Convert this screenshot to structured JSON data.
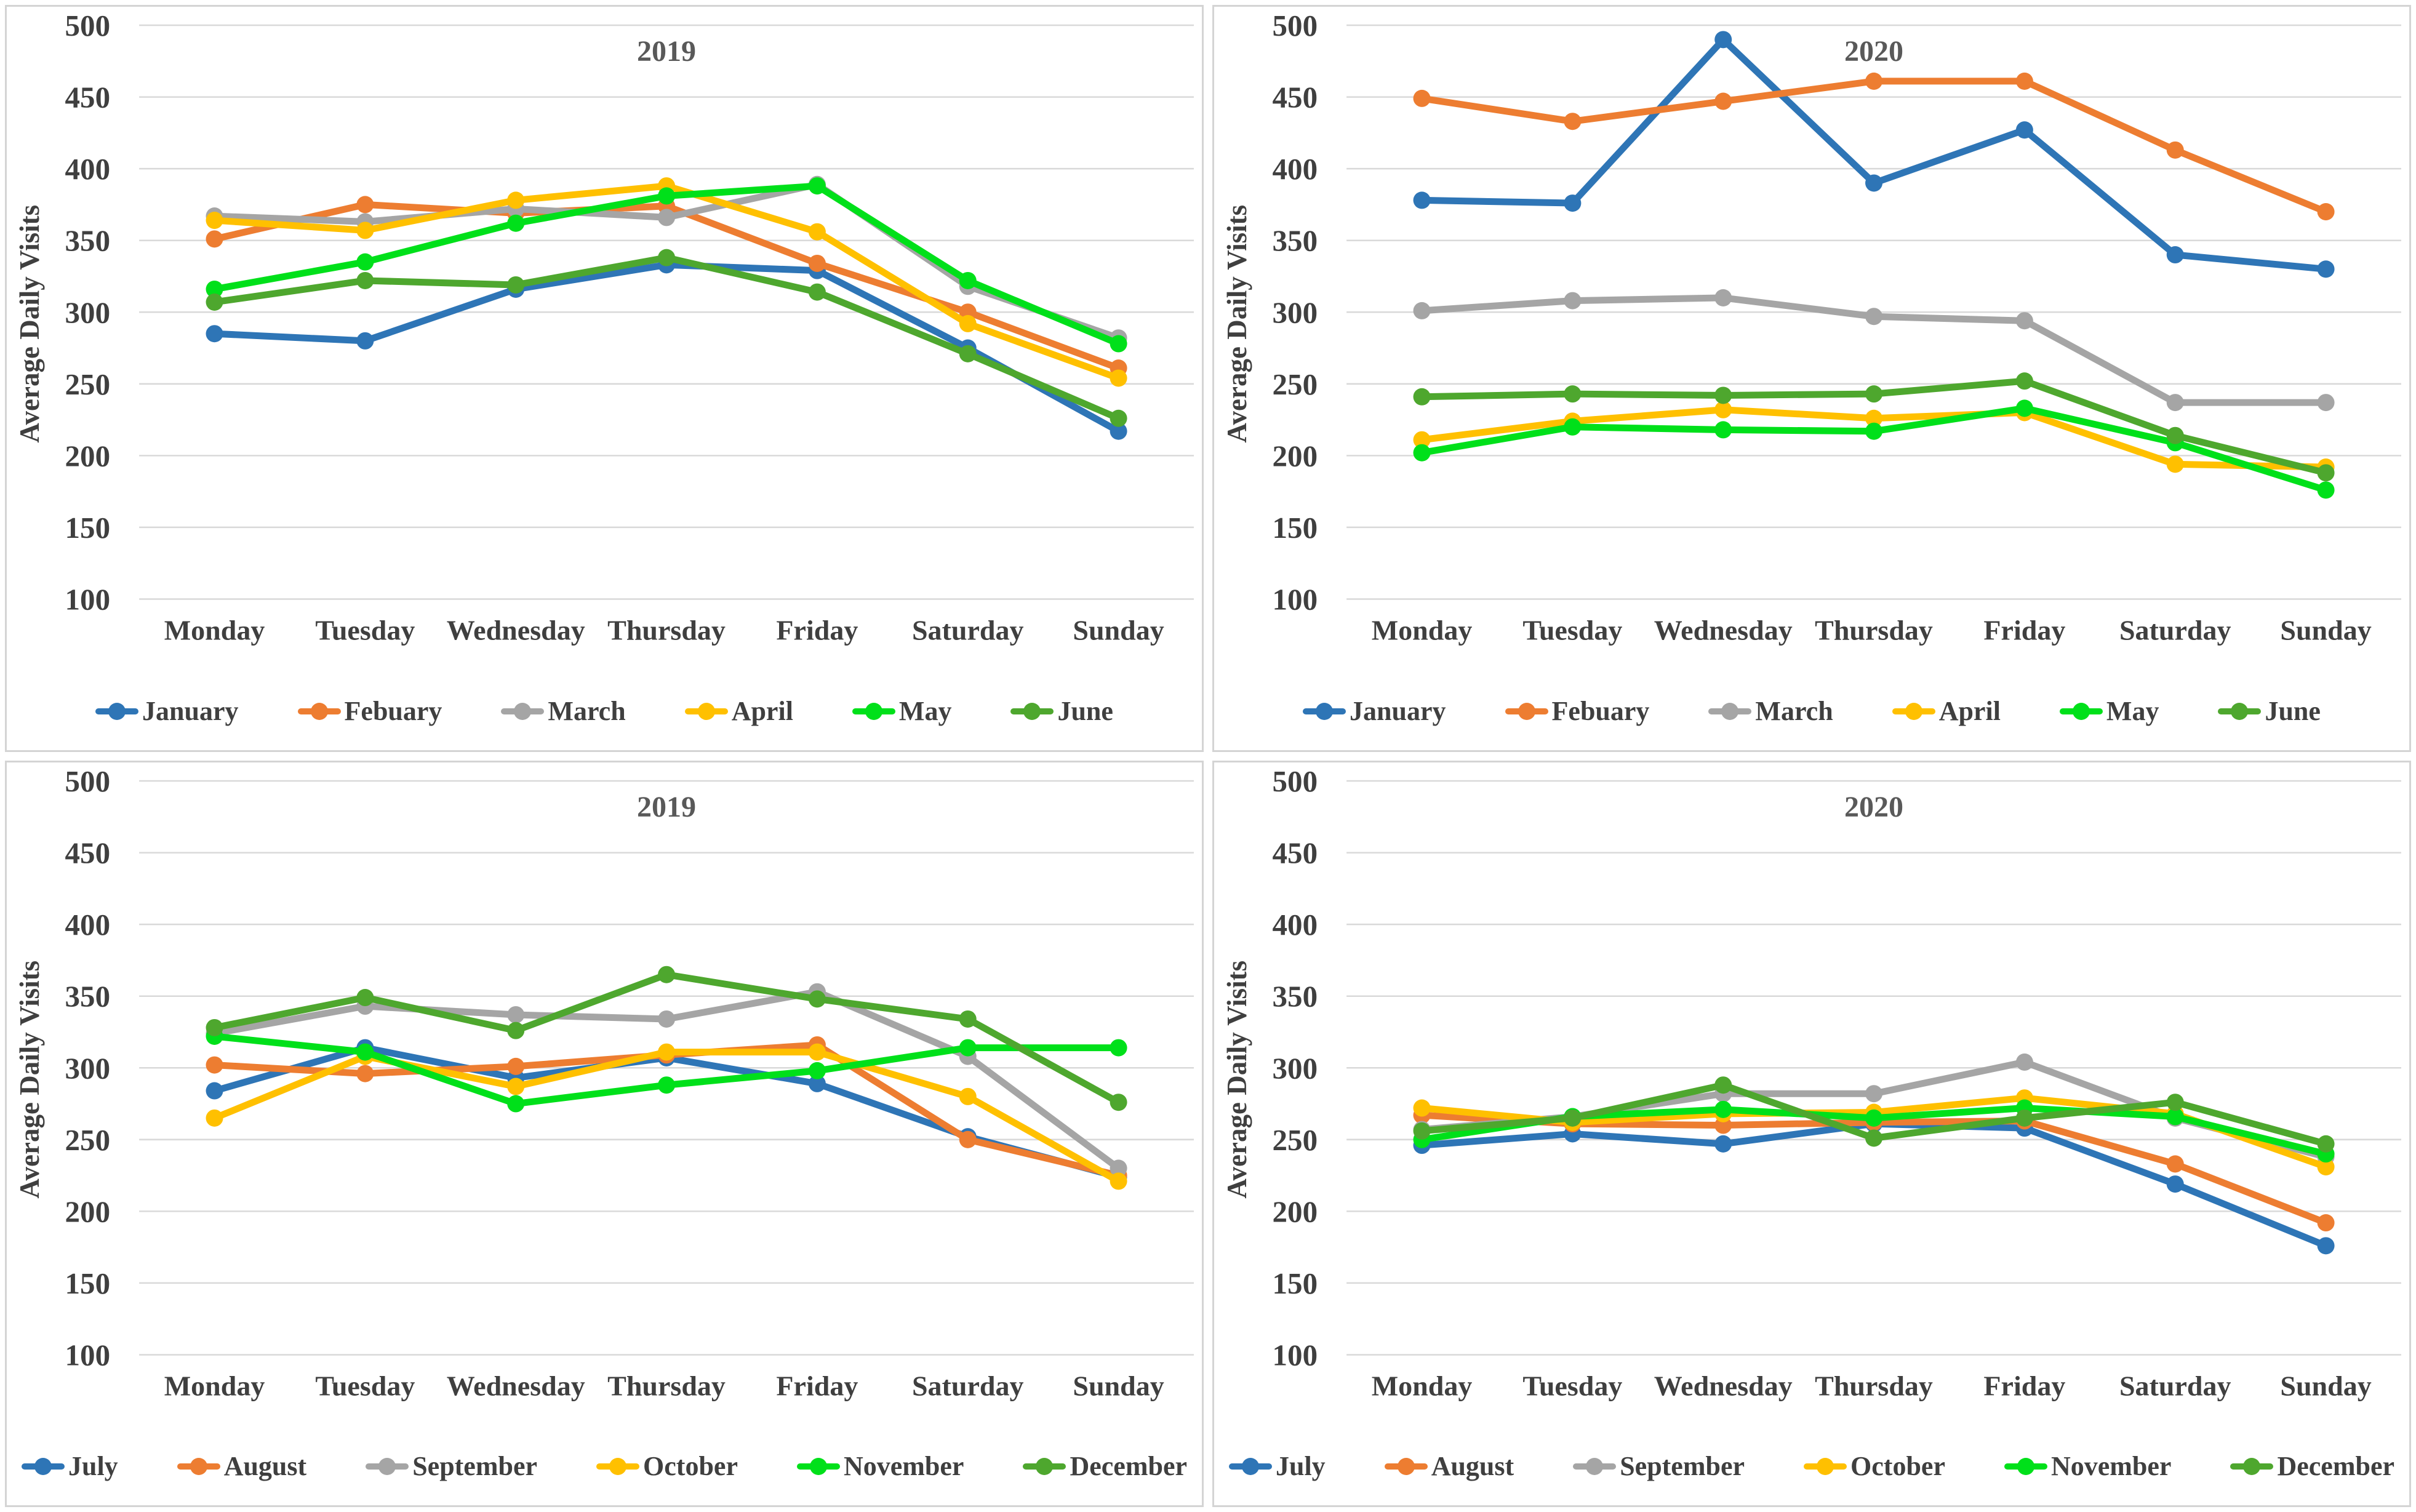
{
  "page": {
    "background": "#ffffff",
    "panel_border": "#d4d4d4",
    "gridline_color": "#d9d9d9",
    "text_color": "#3f3f3f",
    "title_color": "#595959"
  },
  "y_axis": {
    "label": "Average Daily Visits",
    "min": 100,
    "max": 500,
    "step": 50,
    "ticks": [
      500,
      450,
      400,
      350,
      300,
      250,
      200,
      150,
      100
    ]
  },
  "categories": [
    "Monday",
    "Tuesday",
    "Wednesday",
    "Thursday",
    "Friday",
    "Saturday",
    "Sunday"
  ],
  "chart_data": [
    {
      "type": "line",
      "position": "top-left",
      "title": "2019",
      "ylabel": "Average Daily Visits",
      "ylim": [
        100,
        500
      ],
      "grid": true,
      "legend_position": "bottom",
      "categories": [
        "Monday",
        "Tuesday",
        "Wednesday",
        "Thursday",
        "Friday",
        "Saturday",
        "Sunday"
      ],
      "series": [
        {
          "name": "January",
          "color": "#2E75B6",
          "values": [
            285,
            280,
            316,
            333,
            329,
            275,
            217
          ]
        },
        {
          "name": "Febuary",
          "color": "#ED7D31",
          "values": [
            351,
            375,
            369,
            374,
            334,
            300,
            261
          ]
        },
        {
          "name": "March",
          "color": "#A5A5A5",
          "values": [
            367,
            363,
            372,
            366,
            389,
            318,
            282
          ]
        },
        {
          "name": "April",
          "color": "#FFC000",
          "values": [
            364,
            357,
            378,
            388,
            356,
            292,
            254
          ]
        },
        {
          "name": "May",
          "color": "#00E01A",
          "values": [
            316,
            335,
            362,
            381,
            388,
            322,
            278
          ]
        },
        {
          "name": "June",
          "color": "#4EA72E",
          "values": [
            307,
            322,
            319,
            338,
            314,
            271,
            226
          ]
        }
      ]
    },
    {
      "type": "line",
      "position": "top-right",
      "title": "2020",
      "ylabel": "Average Daily Visits",
      "ylim": [
        100,
        500
      ],
      "grid": true,
      "legend_position": "bottom",
      "categories": [
        "Monday",
        "Tuesday",
        "Wednesday",
        "Thursday",
        "Friday",
        "Saturday",
        "Sunday"
      ],
      "series": [
        {
          "name": "January",
          "color": "#2E75B6",
          "values": [
            378,
            376,
            490,
            390,
            427,
            340,
            330
          ]
        },
        {
          "name": "Febuary",
          "color": "#ED7D31",
          "values": [
            449,
            433,
            447,
            461,
            461,
            413,
            370
          ]
        },
        {
          "name": "March",
          "color": "#A5A5A5",
          "values": [
            301,
            308,
            310,
            297,
            294,
            237,
            237
          ]
        },
        {
          "name": "April",
          "color": "#FFC000",
          "values": [
            211,
            224,
            232,
            226,
            230,
            194,
            192
          ]
        },
        {
          "name": "May",
          "color": "#00E01A",
          "values": [
            202,
            220,
            218,
            217,
            233,
            209,
            176
          ]
        },
        {
          "name": "June",
          "color": "#4EA72E",
          "values": [
            241,
            243,
            242,
            243,
            252,
            214,
            188
          ]
        }
      ]
    },
    {
      "type": "line",
      "position": "bottom-left",
      "title": "2019",
      "ylabel": "Average Daily Visits",
      "ylim": [
        100,
        500
      ],
      "grid": true,
      "legend_position": "bottom",
      "categories": [
        "Monday",
        "Tuesday",
        "Wednesday",
        "Thursday",
        "Friday",
        "Saturday",
        "Sunday"
      ],
      "series": [
        {
          "name": "July",
          "color": "#2E75B6",
          "values": [
            284,
            314,
            293,
            307,
            289,
            252,
            224
          ]
        },
        {
          "name": "August",
          "color": "#ED7D31",
          "values": [
            302,
            296,
            301,
            309,
            316,
            250,
            225
          ]
        },
        {
          "name": "September",
          "color": "#A5A5A5",
          "values": [
            324,
            343,
            337,
            334,
            353,
            308,
            230
          ]
        },
        {
          "name": "October",
          "color": "#FFC000",
          "values": [
            265,
            308,
            287,
            311,
            311,
            280,
            221
          ]
        },
        {
          "name": "November",
          "color": "#00E01A",
          "values": [
            322,
            311,
            275,
            288,
            298,
            314,
            314
          ]
        },
        {
          "name": "December",
          "color": "#4EA72E",
          "values": [
            328,
            349,
            326,
            365,
            348,
            334,
            276
          ]
        }
      ]
    },
    {
      "type": "line",
      "position": "bottom-right",
      "title": "2020",
      "ylabel": "Average Daily Visits",
      "ylim": [
        100,
        500
      ],
      "grid": true,
      "legend_position": "bottom",
      "categories": [
        "Monday",
        "Tuesday",
        "Wednesday",
        "Thursday",
        "Friday",
        "Saturday",
        "Sunday"
      ],
      "series": [
        {
          "name": "July",
          "color": "#2E75B6",
          "values": [
            246,
            254,
            247,
            261,
            258,
            219,
            176
          ]
        },
        {
          "name": "August",
          "color": "#ED7D31",
          "values": [
            267,
            261,
            260,
            262,
            263,
            233,
            192
          ]
        },
        {
          "name": "September",
          "color": "#A5A5A5",
          "values": [
            257,
            266,
            282,
            282,
            304,
            265,
            238
          ]
        },
        {
          "name": "October",
          "color": "#FFC000",
          "values": [
            272,
            262,
            268,
            269,
            279,
            268,
            231
          ]
        },
        {
          "name": "November",
          "color": "#00E01A",
          "values": [
            250,
            266,
            271,
            265,
            272,
            266,
            240
          ]
        },
        {
          "name": "December",
          "color": "#4EA72E",
          "values": [
            256,
            265,
            288,
            251,
            265,
            276,
            247
          ]
        }
      ]
    }
  ]
}
